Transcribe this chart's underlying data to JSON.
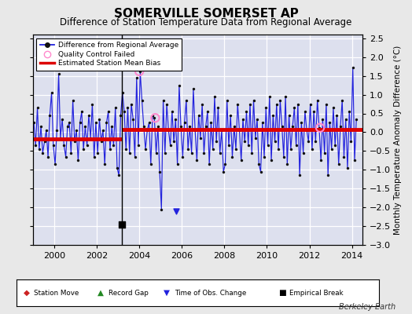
{
  "title": "SOMERVILLE SOMERSET AP",
  "subtitle": "Difference of Station Temperature Data from Regional Average",
  "ylabel_right": "Monthly Temperature Anomaly Difference (°C)",
  "xlim": [
    1999.0,
    2014.5
  ],
  "ylim": [
    -3.0,
    2.6
  ],
  "yticks": [
    -3,
    -2.5,
    -2,
    -1.5,
    -1,
    -0.5,
    0,
    0.5,
    1,
    1.5,
    2,
    2.5
  ],
  "xticks": [
    2000,
    2002,
    2004,
    2006,
    2008,
    2010,
    2012,
    2014
  ],
  "fig_bg": "#e8e8e8",
  "plot_bg": "#dde0ee",
  "grid_color": "#ffffff",
  "line_color": "#2222dd",
  "dot_color": "#111111",
  "bias_color": "#dd0000",
  "bias_y_early": -0.17,
  "bias_y_late": 0.07,
  "break_x": 2003.17,
  "bias_x_start": 1999.0,
  "bias_x_end": 2014.5,
  "empirical_break_x": 2003.17,
  "empirical_break_y": -2.45,
  "obs_change_x": 2005.75,
  "obs_change_y": -2.1,
  "qc_points": [
    [
      2004.0,
      1.62
    ],
    [
      2004.75,
      0.38
    ],
    [
      2012.5,
      0.12
    ]
  ],
  "qc_color": "#ff88cc",
  "footer": "Berkeley Earth",
  "title_fontsize": 11,
  "subtitle_fontsize": 8.5,
  "tick_fontsize": 8,
  "ylabel_fontsize": 7.5
}
